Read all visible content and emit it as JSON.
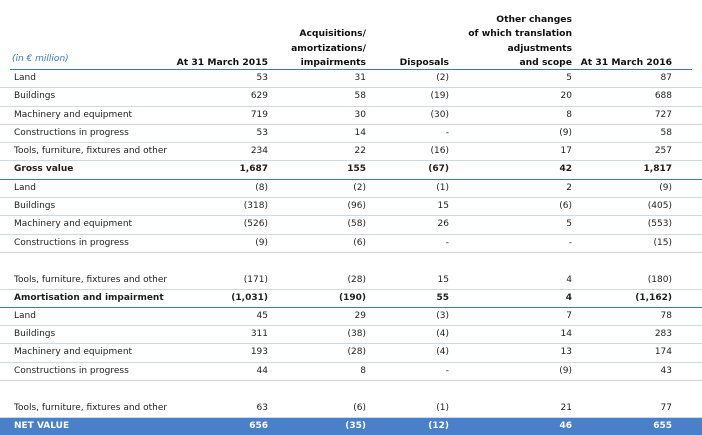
{
  "unit_label": "(in € million)",
  "columns": [
    "At 31 March 2015",
    "Acquisitions/ amortizations/ impairments",
    "Disposals",
    "Other changes of which translation adjustments and scope",
    "At 31 March 2016"
  ],
  "col_lines": [
    [
      "At 31 March 2015"
    ],
    [
      "Acquisitions/",
      "amortizations/",
      "impairments"
    ],
    [
      "Disposals"
    ],
    [
      "Other changes",
      "of which translation",
      "adjustments",
      "and scope"
    ],
    [
      "At 31 March 2016"
    ]
  ],
  "rows": [
    {
      "label": "Land",
      "values": [
        "53",
        "31",
        "(2)",
        "5",
        "87"
      ],
      "kind": "row"
    },
    {
      "label": "Buildings",
      "values": [
        "629",
        "58",
        "(19)",
        "20",
        "688"
      ],
      "kind": "row"
    },
    {
      "label": "Machinery and equipment",
      "values": [
        "719",
        "30",
        "(30)",
        "8",
        "727"
      ],
      "kind": "row"
    },
    {
      "label": "Constructions in progress",
      "values": [
        "53",
        "14",
        "-",
        "(9)",
        "58"
      ],
      "kind": "row"
    },
    {
      "label": "Tools, furniture, fixtures and other",
      "values": [
        "234",
        "22",
        "(16)",
        "17",
        "257"
      ],
      "kind": "row"
    },
    {
      "label": "Gross value",
      "values": [
        "1,687",
        "155",
        "(67)",
        "42",
        "1,817"
      ],
      "kind": "sub"
    },
    {
      "label": "Land",
      "values": [
        "(8)",
        "(2)",
        "(1)",
        "2",
        "(9)"
      ],
      "kind": "row"
    },
    {
      "label": "Buildings",
      "values": [
        "(318)",
        "(96)",
        "15",
        "(6)",
        "(405)"
      ],
      "kind": "row"
    },
    {
      "label": "Machinery and equipment",
      "values": [
        "(526)",
        "(58)",
        "26",
        "5",
        "(553)"
      ],
      "kind": "row"
    },
    {
      "label": "Constructions in progress",
      "values": [
        "(9)",
        "(6)",
        "-",
        "-",
        "(15)"
      ],
      "kind": "row"
    },
    {
      "label": "Tools, furniture, fixtures and other",
      "values": [
        "(171)",
        "(28)",
        "15",
        "4",
        "(180)"
      ],
      "kind": "tall"
    },
    {
      "label": "Amortisation and impairment",
      "values": [
        "(1,031)",
        "(190)",
        "55",
        "4",
        "(1,162)"
      ],
      "kind": "sub"
    },
    {
      "label": "Land",
      "values": [
        "45",
        "29",
        "(3)",
        "7",
        "78"
      ],
      "kind": "row"
    },
    {
      "label": "Buildings",
      "values": [
        "311",
        "(38)",
        "(4)",
        "14",
        "283"
      ],
      "kind": "row"
    },
    {
      "label": "Machinery and equipment",
      "values": [
        "193",
        "(28)",
        "(4)",
        "13",
        "174"
      ],
      "kind": "row"
    },
    {
      "label": "Constructions in progress",
      "values": [
        "44",
        "8",
        "-",
        "(9)",
        "43"
      ],
      "kind": "row"
    },
    {
      "label": "Tools, furniture, fixtures and other",
      "values": [
        "63",
        "(6)",
        "(1)",
        "21",
        "77"
      ],
      "kind": "tall"
    },
    {
      "label": "NET VALUE",
      "values": [
        "656",
        "(35)",
        "(12)",
        "46",
        "655"
      ],
      "kind": "net"
    }
  ],
  "colors": {
    "accent": "#3b78c8",
    "net_row_bg": "#4a7fc9"
  }
}
